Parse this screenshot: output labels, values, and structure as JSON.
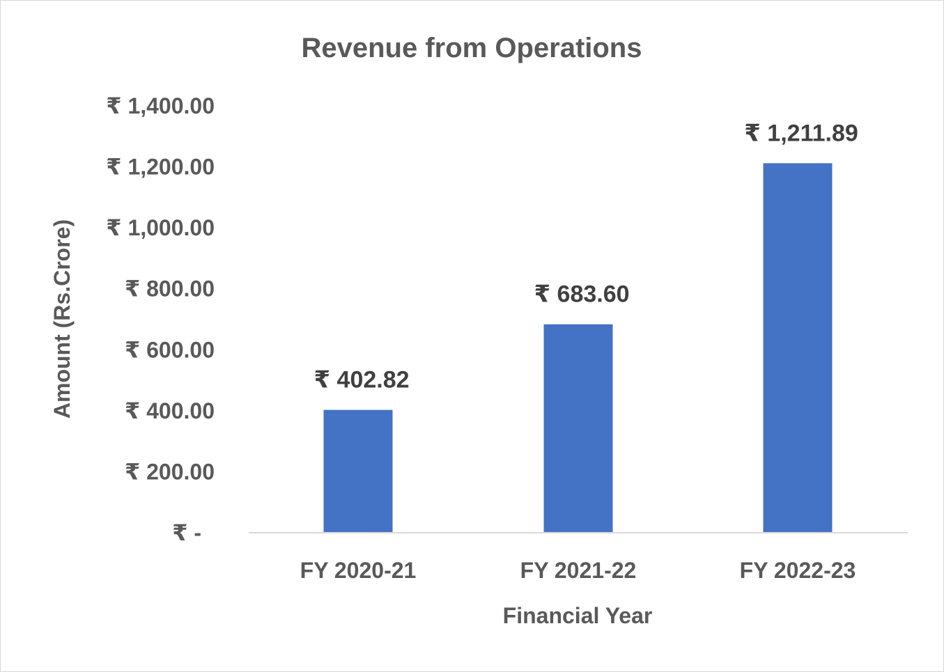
{
  "chart_data": {
    "type": "bar",
    "title": "Revenue from Operations",
    "xlabel": "Financial Year",
    "ylabel": "Amount (Rs.Crore)",
    "categories": [
      "FY 2020-21",
      "FY 2021-22",
      "FY 2022-23"
    ],
    "values": [
      402.82,
      683.6,
      1211.89
    ],
    "data_labels": [
      "₹ 402.82",
      "₹ 683.60",
      "₹ 1,211.89"
    ],
    "ylim": [
      0,
      1400
    ],
    "yticks": [
      0,
      200,
      400,
      600,
      800,
      1000,
      1200,
      1400
    ],
    "ytick_labels": [
      "₹ -",
      "₹ 200.00",
      "₹ 400.00",
      "₹ 600.00",
      "₹ 800.00",
      "₹ 1,000.00",
      "₹ 1,200.00",
      "₹ 1,400.00"
    ],
    "grid": false,
    "legend": "none",
    "bar_color": "#4472c4"
  }
}
